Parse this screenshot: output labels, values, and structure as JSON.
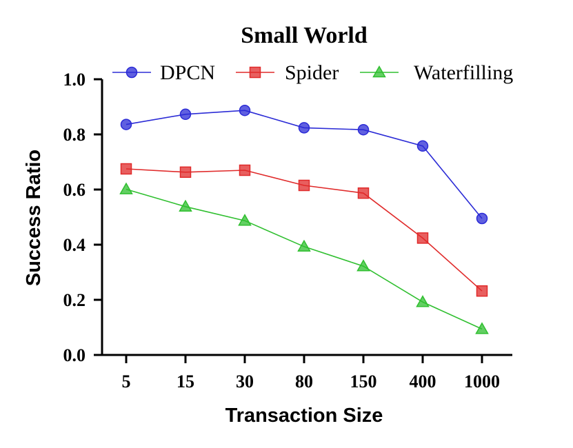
{
  "chart_data": {
    "type": "line",
    "title": "Small World",
    "xlabel": "Transaction Size",
    "ylabel": "Success Ratio",
    "categories": [
      "5",
      "15",
      "30",
      "80",
      "150",
      "400",
      "1000"
    ],
    "ylim": [
      0,
      1.0
    ],
    "yticks": [
      "0.0",
      "0.2",
      "0.4",
      "0.6",
      "0.8",
      "1.0"
    ],
    "grid": false,
    "legend_position": "top",
    "series": [
      {
        "name": "DPCN",
        "color": "#2b2bd6",
        "marker": "circle",
        "values": [
          0.836,
          0.873,
          0.887,
          0.824,
          0.817,
          0.758,
          0.495
        ]
      },
      {
        "name": "Spider",
        "color": "#e02a2a",
        "marker": "square",
        "values": [
          0.675,
          0.663,
          0.67,
          0.615,
          0.587,
          0.424,
          0.232
        ]
      },
      {
        "name": "Waterfilling",
        "color": "#2fbf2f",
        "marker": "triangle",
        "values": [
          0.601,
          0.538,
          0.487,
          0.393,
          0.322,
          0.192,
          0.094
        ]
      }
    ]
  }
}
